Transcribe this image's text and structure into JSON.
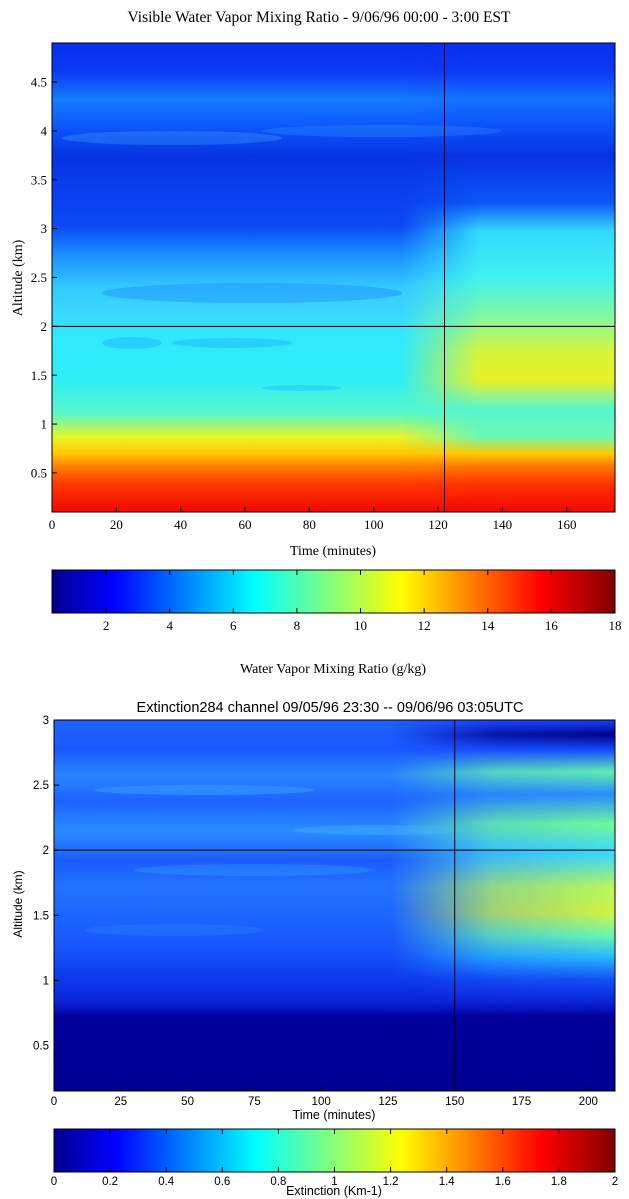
{
  "chart_data": [
    {
      "type": "heatmap",
      "title": "Visible Water Vapor Mixing Ratio - 9/06/96 00:00 - 3:00 EST",
      "xlabel": "Time (minutes)",
      "ylabel": "Altitude (km)",
      "xlim": [
        0,
        175
      ],
      "ylim": [
        0.1,
        4.9
      ],
      "xticks": [
        "0",
        "20",
        "40",
        "60",
        "80",
        "100",
        "120",
        "140",
        "160"
      ],
      "yticks": [
        "0.5",
        "1",
        "1.5",
        "2",
        "2.5",
        "3",
        "3.5",
        "4",
        "4.5"
      ],
      "crosshair": {
        "x": 122,
        "y": 2
      },
      "colorbar": {
        "label": "Water Vapor Mixing Ratio (g/kg)",
        "range": [
          0.3,
          18
        ],
        "ticks": [
          "2",
          "4",
          "6",
          "8",
          "10",
          "12",
          "14",
          "16",
          "18"
        ]
      },
      "altitude_profile_gkg": {
        "altitude_km": [
          0.1,
          0.3,
          0.5,
          0.6,
          0.75,
          0.9,
          1.0,
          1.2,
          1.5,
          1.9,
          2.1,
          2.4,
          2.6,
          2.9,
          3.3,
          3.7,
          4.0,
          4.4,
          4.9
        ],
        "west_of_122min": [
          15.5,
          15.0,
          14.2,
          12.8,
          11.5,
          9.4,
          7.8,
          7.2,
          7.0,
          6.8,
          6.4,
          5.6,
          4.9,
          3.5,
          2.8,
          2.6,
          4.1,
          3.1,
          2.5
        ],
        "east_of_122min": [
          15.5,
          15.0,
          14.2,
          12.6,
          11.0,
          8.6,
          7.8,
          9.8,
          10.6,
          9.0,
          7.4,
          7.0,
          6.7,
          4.2,
          2.9,
          2.6,
          3.9,
          3.0,
          2.5
        ]
      }
    },
    {
      "type": "heatmap",
      "title": "Extinction284 channel 09/05/96   23:30 -- 09/06/96   03:05UTC",
      "xlabel": "Time (minutes)",
      "ylabel": "Altitude (km)",
      "xlim": [
        0,
        210
      ],
      "ylim": [
        0.15,
        3.0
      ],
      "xticks": [
        "0",
        "25",
        "50",
        "75",
        "100",
        "125",
        "150",
        "175",
        "200"
      ],
      "yticks": [
        "0.5",
        "1",
        "1.5",
        "2",
        "2.5",
        "3"
      ],
      "crosshair": {
        "x": 150,
        "y": 2
      },
      "colorbar": {
        "label": "Extinction (Km-1)",
        "range": [
          0,
          2
        ],
        "ticks": [
          "0",
          "0.2",
          "0.4",
          "0.6",
          "0.8",
          "1",
          "1.2",
          "1.4",
          "1.6",
          "1.8",
          "2"
        ]
      },
      "altitude_profile_km1": {
        "altitude_km": [
          0.15,
          0.6,
          0.7,
          0.9,
          1.1,
          1.4,
          1.7,
          2.0,
          2.3,
          2.6,
          2.85,
          3.0
        ],
        "west_of_150min": [
          0.05,
          0.08,
          0.22,
          0.28,
          0.36,
          0.42,
          0.44,
          0.46,
          0.48,
          0.52,
          0.38,
          0.45
        ],
        "east_of_150min": [
          0.05,
          0.08,
          0.26,
          0.45,
          0.75,
          1.05,
          1.25,
          1.3,
          1.15,
          1.0,
          0.2,
          0.6
        ]
      }
    }
  ]
}
